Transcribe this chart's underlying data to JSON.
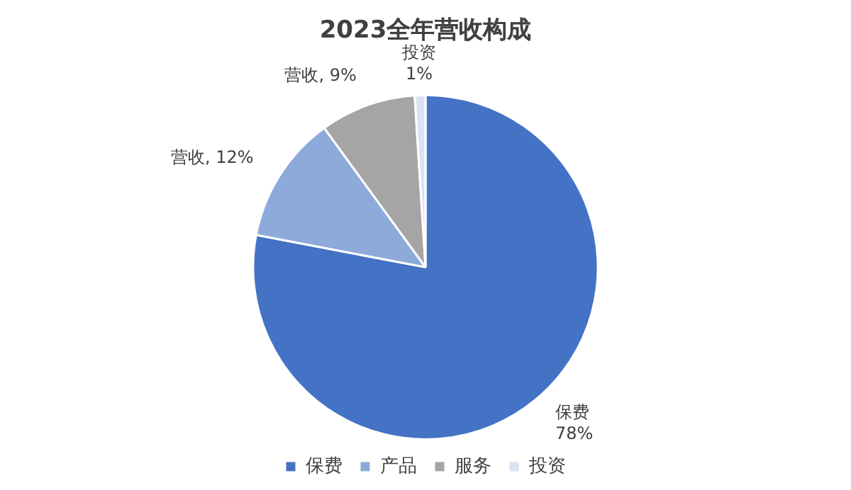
{
  "chart_data": {
    "type": "pie",
    "title": "2023全年营收构成",
    "categories": [
      "保费",
      "产品",
      "服务",
      "投资"
    ],
    "values": [
      78,
      12,
      9,
      1
    ],
    "colors": [
      "#4472c4",
      "#8eaadb",
      "#a5a5a5",
      "#dae3f3"
    ],
    "value_labels": [
      "保费\n78%",
      "营收, 12%",
      "营收, 9%",
      "投资\n1%"
    ],
    "legend": "bottom"
  }
}
